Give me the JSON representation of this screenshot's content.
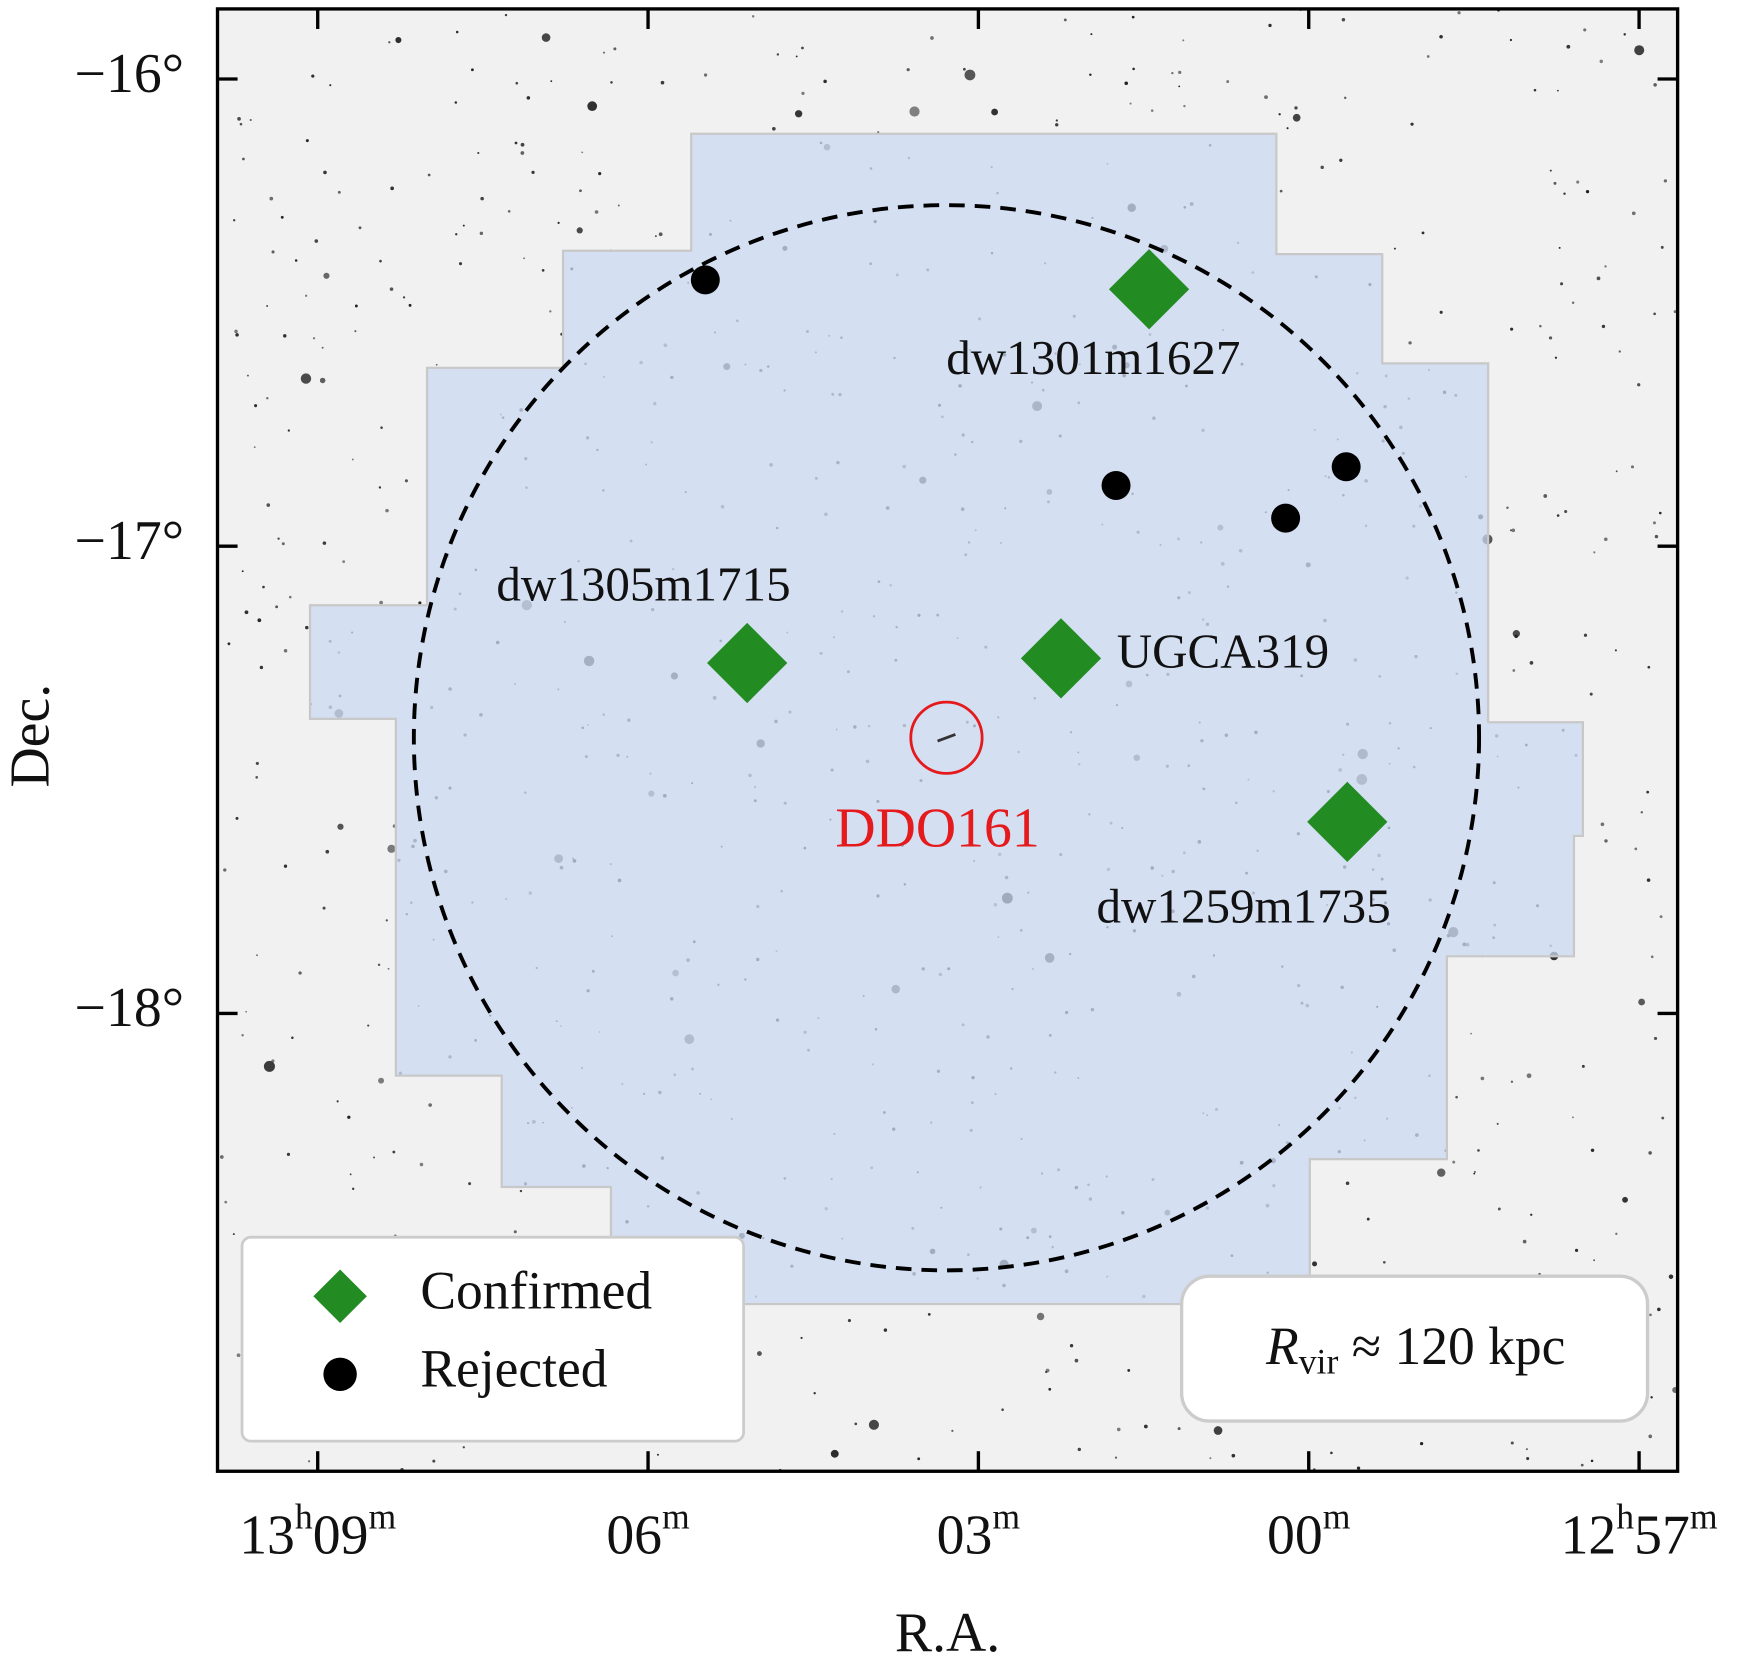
{
  "chart_data": {
    "type": "scatter",
    "xlabel": "R.A.",
    "ylabel": "Dec.",
    "xlim": [
      789.91,
      776.65
    ],
    "ylim": [
      -18.98,
      -15.85
    ],
    "xticks": [
      {
        "value": 789,
        "label": "13h09m"
      },
      {
        "value": 786,
        "label": "06m"
      },
      {
        "value": 783,
        "label": "03m"
      },
      {
        "value": 780,
        "label": "00m"
      },
      {
        "value": 777,
        "label": "12h57m"
      }
    ],
    "yticks": [
      {
        "value": -16,
        "label": "−16°"
      },
      {
        "value": -17,
        "label": "−17°"
      },
      {
        "value": -18,
        "label": "−18°"
      }
    ],
    "legend": "lower left",
    "series": [
      {
        "name": "Confirmed",
        "color": "#228b22",
        "marker": "diamond",
        "x": [
          781.45,
          785.1,
          782.25,
          779.65
        ],
        "values": [
          -16.45,
          -17.25,
          -17.24,
          -17.59
        ],
        "labels": [
          "dw1301m1627",
          "dw1305m1715",
          "UGCA319",
          "dw1259m1735"
        ]
      },
      {
        "name": "Rejected",
        "color": "#000000",
        "marker": "circle",
        "x": [
          785.48,
          781.75,
          779.66,
          780.21
        ],
        "values": [
          -16.43,
          -16.87,
          -16.83,
          -16.94
        ]
      }
    ],
    "highlight": {
      "label": "DDO161",
      "x": 783.29,
      "y": -17.41,
      "color": "#e41a1c"
    },
    "circle": {
      "x": 783.29,
      "y": -17.41,
      "radius": 1.14
    },
    "annotation": {
      "symbol": "R",
      "subscript": "vir",
      "text": "≈ 120 kpc"
    }
  }
}
